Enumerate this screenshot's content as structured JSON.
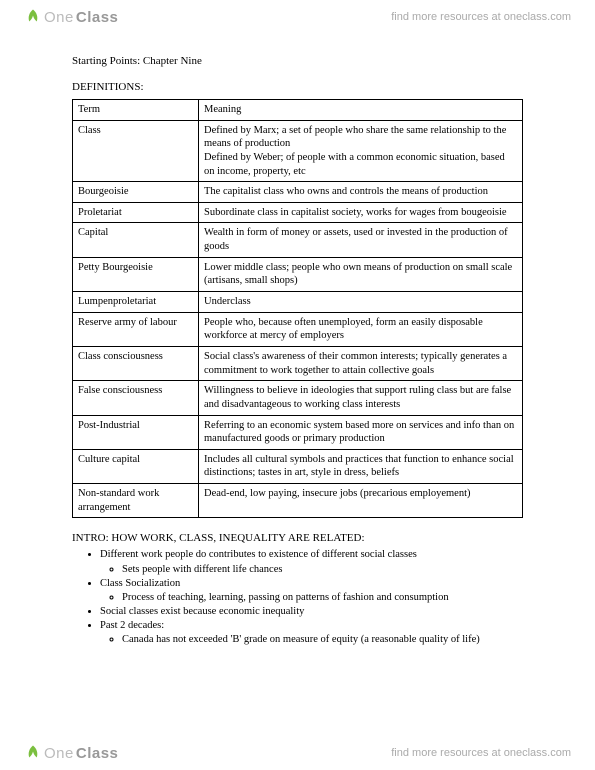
{
  "brand": {
    "part1": "One",
    "part2": "Class"
  },
  "header_link": "find more resources at oneclass.com",
  "footer_link": "find more resources at oneclass.com",
  "chapter_title": "Starting Points: Chapter Nine",
  "definitions_label": "DEFINITIONS:",
  "table": {
    "header": {
      "term": "Term",
      "meaning": "Meaning"
    },
    "rows": [
      {
        "term": "Class",
        "meaning": "Defined by Marx; a set of people who share the same relationship to the means of production\nDefined by Weber; of people with a common economic situation, based on income, property, etc"
      },
      {
        "term": "Bourgeoisie",
        "meaning": "The capitalist class who owns and controls the means of production"
      },
      {
        "term": "Proletariat",
        "meaning": "Subordinate class in capitalist society, works for wages from bougeoisie"
      },
      {
        "term": "Capital",
        "meaning": "Wealth in form of money or assets, used or invested in the production of goods"
      },
      {
        "term": "Petty Bourgeoisie",
        "meaning": "Lower middle class; people who own means of production on small scale (artisans, small shops)"
      },
      {
        "term": "Lumpenproletariat",
        "meaning": "Underclass"
      },
      {
        "term": "Reserve army of labour",
        "meaning": "People who, because often unemployed, form an easily disposable workforce at mercy of employers"
      },
      {
        "term": "Class consciousness",
        "meaning": "Social class's awareness of their common interests; typically generates a commitment to work together to attain collective goals"
      },
      {
        "term": "False consciousness",
        "meaning": "Willingness to believe in ideologies that support ruling class but are false and disadvantageous to working class interests"
      },
      {
        "term": "Post-Industrial",
        "meaning": "Referring to an economic system based more on services and info than on manufactured goods or primary production"
      },
      {
        "term": "Culture capital",
        "meaning": "Includes all cultural symbols and practices that function to enhance social distinctions; tastes in art, style in dress, beliefs"
      },
      {
        "term": "Non-standard work arrangement",
        "meaning": "Dead-end, low paying, insecure jobs (precarious employement)"
      }
    ]
  },
  "intro": {
    "heading": "INTRO: HOW WORK, CLASS, INEQUALITY ARE RELATED:",
    "bullets": [
      {
        "text": "Different work people do contributes to existence of different social classes",
        "sub": [
          "Sets people with different life chances"
        ]
      },
      {
        "text": "Class Socialization",
        "sub": [
          "Process of teaching, learning, passing on patterns of fashion and consumption"
        ]
      },
      {
        "text": "Social classes exist because economic inequality",
        "sub": []
      },
      {
        "text": "Past 2 decades:",
        "sub": [
          "Canada has not exceeded 'B' grade on measure of equity (a reasonable quality of life)"
        ]
      }
    ]
  },
  "colors": {
    "text": "#000000",
    "border": "#000000",
    "background": "#ffffff",
    "header_text": "#999999",
    "logo_light": "#bbbbbb",
    "logo_dark": "#999999",
    "logo_accent": "#7bbf3f"
  }
}
